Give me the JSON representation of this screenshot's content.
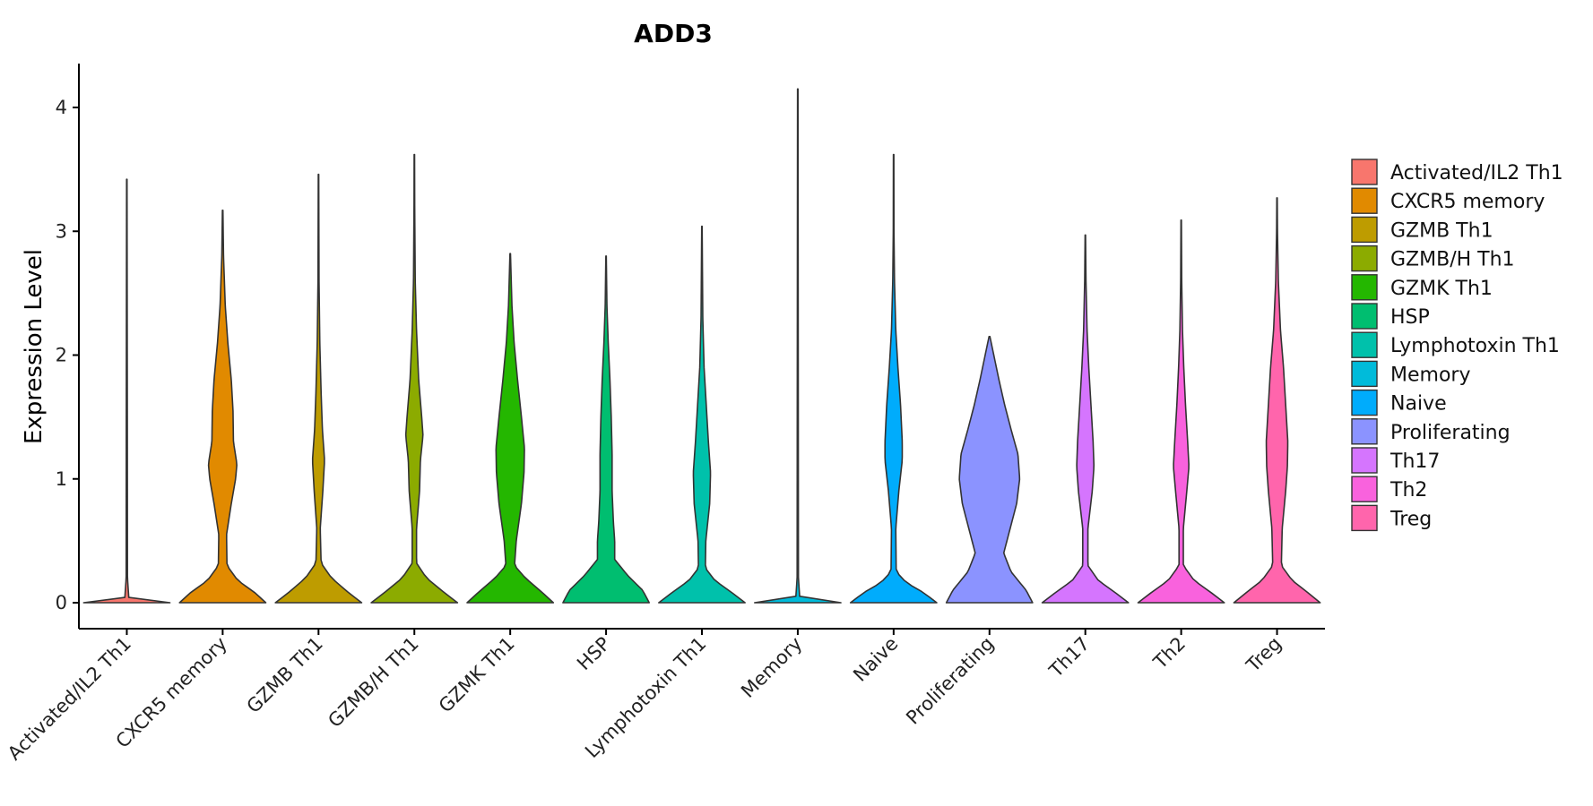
{
  "chart_data": {
    "type": "violin",
    "title": "ADD3",
    "xlabel": "",
    "ylabel": "Expression Level",
    "ylim": [
      -0.2,
      4.35
    ],
    "yticks": [
      0,
      1,
      2,
      3,
      4
    ],
    "grid": false,
    "legend_position": "right",
    "categories": [
      "Activated/IL2 Th1",
      "CXCR5 memory",
      "GZMB Th1",
      "GZMB/H Th1",
      "GZMK Th1",
      "HSP",
      "Lymphotoxin Th1",
      "Memory",
      "Naive",
      "Proliferating",
      "Th17",
      "Th2",
      "Treg"
    ],
    "colors": [
      "#F8766D",
      "#E18A00",
      "#BE9C00",
      "#8CAB00",
      "#24B700",
      "#00BE70",
      "#00C1AB",
      "#00BBDA",
      "#00ACFC",
      "#8B93FF",
      "#D575FE",
      "#F962DD",
      "#FF65AC"
    ],
    "series": [
      {
        "name": "Activated/IL2 Th1",
        "max": 3.42,
        "profile": [
          [
            0,
            1.0
          ],
          [
            0.02,
            0.05
          ],
          [
            0.2,
            0.015
          ],
          [
            1.5,
            0.012
          ],
          [
            3.42,
            0.005
          ]
        ]
      },
      {
        "name": "CXCR5 memory",
        "max": 3.17,
        "profile": [
          [
            0,
            1.0
          ],
          [
            0.08,
            0.75
          ],
          [
            0.18,
            0.35
          ],
          [
            0.3,
            0.1
          ],
          [
            0.55,
            0.09
          ],
          [
            0.8,
            0.2
          ],
          [
            1.0,
            0.3
          ],
          [
            1.12,
            0.33
          ],
          [
            1.3,
            0.25
          ],
          [
            1.55,
            0.24
          ],
          [
            1.8,
            0.2
          ],
          [
            2.1,
            0.12
          ],
          [
            2.4,
            0.06
          ],
          [
            2.8,
            0.02
          ],
          [
            3.17,
            0.006
          ]
        ]
      },
      {
        "name": "GZMB Th1",
        "max": 3.46,
        "profile": [
          [
            0,
            1.0
          ],
          [
            0.08,
            0.7
          ],
          [
            0.2,
            0.3
          ],
          [
            0.32,
            0.06
          ],
          [
            0.6,
            0.04
          ],
          [
            0.9,
            0.1
          ],
          [
            1.15,
            0.14
          ],
          [
            1.4,
            0.09
          ],
          [
            1.7,
            0.06
          ],
          [
            2.1,
            0.03
          ],
          [
            2.6,
            0.012
          ],
          [
            3.46,
            0.005
          ]
        ]
      },
      {
        "name": "GZMB/H Th1",
        "max": 3.62,
        "profile": [
          [
            0,
            1.0
          ],
          [
            0.08,
            0.7
          ],
          [
            0.2,
            0.28
          ],
          [
            0.32,
            0.05
          ],
          [
            0.6,
            0.05
          ],
          [
            0.9,
            0.12
          ],
          [
            1.15,
            0.14
          ],
          [
            1.35,
            0.2
          ],
          [
            1.5,
            0.17
          ],
          [
            1.8,
            0.1
          ],
          [
            2.2,
            0.05
          ],
          [
            2.6,
            0.02
          ],
          [
            3.2,
            0.008
          ],
          [
            3.62,
            0.005
          ]
        ]
      },
      {
        "name": "GZMK Th1",
        "max": 2.82,
        "profile": [
          [
            0,
            1.0
          ],
          [
            0.08,
            0.75
          ],
          [
            0.2,
            0.35
          ],
          [
            0.3,
            0.1
          ],
          [
            0.5,
            0.14
          ],
          [
            0.8,
            0.26
          ],
          [
            1.05,
            0.32
          ],
          [
            1.25,
            0.33
          ],
          [
            1.5,
            0.26
          ],
          [
            1.8,
            0.17
          ],
          [
            2.1,
            0.09
          ],
          [
            2.4,
            0.04
          ],
          [
            2.82,
            0.006
          ]
        ]
      },
      {
        "name": "HSP",
        "max": 2.8,
        "profile": [
          [
            0,
            1.0
          ],
          [
            0.1,
            0.85
          ],
          [
            0.22,
            0.5
          ],
          [
            0.35,
            0.2
          ],
          [
            0.5,
            0.2
          ],
          [
            0.65,
            0.17
          ],
          [
            0.9,
            0.14
          ],
          [
            1.2,
            0.14
          ],
          [
            1.5,
            0.12
          ],
          [
            1.8,
            0.09
          ],
          [
            2.1,
            0.05
          ],
          [
            2.4,
            0.02
          ],
          [
            2.8,
            0.005
          ]
        ]
      },
      {
        "name": "Lymphotoxin Th1",
        "max": 3.04,
        "profile": [
          [
            0,
            1.0
          ],
          [
            0.08,
            0.7
          ],
          [
            0.18,
            0.3
          ],
          [
            0.28,
            0.08
          ],
          [
            0.5,
            0.09
          ],
          [
            0.8,
            0.18
          ],
          [
            1.05,
            0.2
          ],
          [
            1.3,
            0.15
          ],
          [
            1.6,
            0.1
          ],
          [
            1.9,
            0.05
          ],
          [
            2.3,
            0.02
          ],
          [
            3.04,
            0.005
          ]
        ]
      },
      {
        "name": "Memory",
        "max": 4.15,
        "profile": [
          [
            0,
            1.0
          ],
          [
            0.02,
            0.05
          ],
          [
            0.2,
            0.015
          ],
          [
            1.5,
            0.012
          ],
          [
            4.15,
            0.005
          ]
        ]
      },
      {
        "name": "Naive",
        "max": 3.62,
        "profile": [
          [
            0,
            1.0
          ],
          [
            0.08,
            0.7
          ],
          [
            0.16,
            0.3
          ],
          [
            0.25,
            0.06
          ],
          [
            0.6,
            0.05
          ],
          [
            0.9,
            0.12
          ],
          [
            1.15,
            0.2
          ],
          [
            1.3,
            0.2
          ],
          [
            1.6,
            0.16
          ],
          [
            1.9,
            0.1
          ],
          [
            2.2,
            0.05
          ],
          [
            2.6,
            0.02
          ],
          [
            3.0,
            0.008
          ],
          [
            3.62,
            0.005
          ]
        ]
      },
      {
        "name": "Proliferating",
        "max": 2.15,
        "profile": [
          [
            0,
            1.0
          ],
          [
            0.1,
            0.85
          ],
          [
            0.25,
            0.5
          ],
          [
            0.4,
            0.33
          ],
          [
            0.6,
            0.48
          ],
          [
            0.8,
            0.63
          ],
          [
            1.0,
            0.7
          ],
          [
            1.2,
            0.66
          ],
          [
            1.4,
            0.5
          ],
          [
            1.6,
            0.35
          ],
          [
            1.8,
            0.22
          ],
          [
            2.0,
            0.1
          ],
          [
            2.15,
            0.01
          ]
        ]
      },
      {
        "name": "Th17",
        "max": 2.97,
        "profile": [
          [
            0,
            1.0
          ],
          [
            0.08,
            0.7
          ],
          [
            0.18,
            0.3
          ],
          [
            0.3,
            0.06
          ],
          [
            0.6,
            0.06
          ],
          [
            0.9,
            0.16
          ],
          [
            1.1,
            0.2
          ],
          [
            1.3,
            0.18
          ],
          [
            1.6,
            0.13
          ],
          [
            1.9,
            0.08
          ],
          [
            2.2,
            0.04
          ],
          [
            2.6,
            0.015
          ],
          [
            2.97,
            0.005
          ]
        ]
      },
      {
        "name": "Th2",
        "max": 3.09,
        "profile": [
          [
            0,
            1.0
          ],
          [
            0.08,
            0.7
          ],
          [
            0.18,
            0.3
          ],
          [
            0.3,
            0.05
          ],
          [
            0.6,
            0.05
          ],
          [
            0.9,
            0.13
          ],
          [
            1.1,
            0.18
          ],
          [
            1.3,
            0.15
          ],
          [
            1.6,
            0.1
          ],
          [
            1.9,
            0.06
          ],
          [
            2.2,
            0.03
          ],
          [
            2.6,
            0.012
          ],
          [
            3.09,
            0.005
          ]
        ]
      },
      {
        "name": "Treg",
        "max": 3.27,
        "profile": [
          [
            0,
            1.0
          ],
          [
            0.08,
            0.72
          ],
          [
            0.18,
            0.35
          ],
          [
            0.3,
            0.1
          ],
          [
            0.6,
            0.12
          ],
          [
            0.9,
            0.2
          ],
          [
            1.1,
            0.24
          ],
          [
            1.3,
            0.25
          ],
          [
            1.6,
            0.2
          ],
          [
            1.9,
            0.15
          ],
          [
            2.2,
            0.08
          ],
          [
            2.6,
            0.03
          ],
          [
            3.0,
            0.01
          ],
          [
            3.27,
            0.005
          ]
        ]
      }
    ]
  }
}
